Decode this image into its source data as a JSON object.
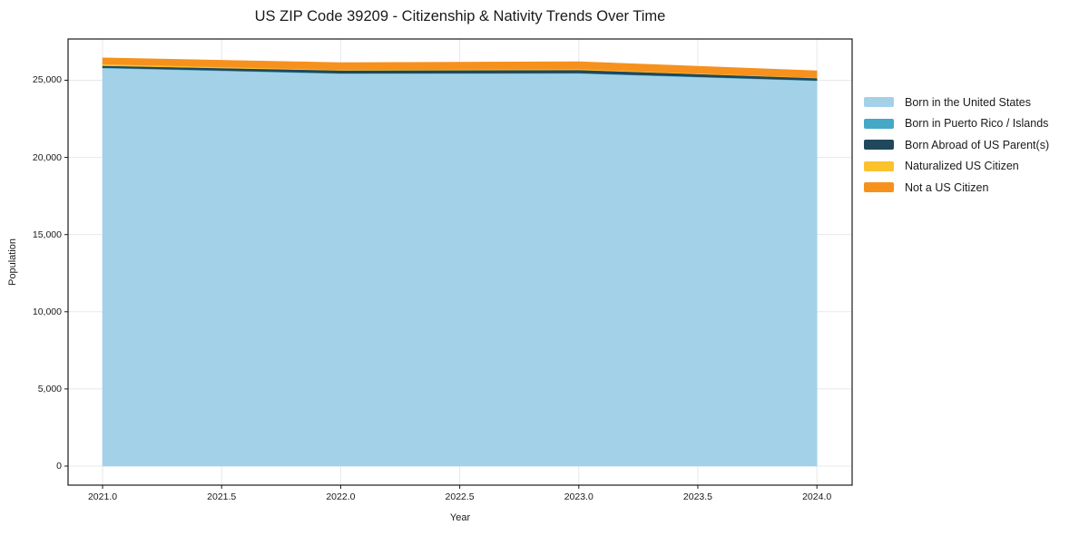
{
  "title": "US ZIP Code 39209 - Citizenship & Nativity Trends Over Time",
  "chart_data": {
    "type": "area",
    "stacked": true,
    "title": "US ZIP Code 39209 - Citizenship & Nativity Trends Over Time",
    "xlabel": "Year",
    "ylabel": "Population",
    "x": [
      2021,
      2022,
      2023,
      2024
    ],
    "series": [
      {
        "name": "Born in the United States",
        "color": "#A3D1E8",
        "values": [
          25790,
          25430,
          25440,
          24970
        ]
      },
      {
        "name": "Born in Puerto Rico / Islands",
        "color": "#44A8C6",
        "values": [
          30,
          30,
          30,
          20
        ]
      },
      {
        "name": "Born Abroad of US Parent(s)",
        "color": "#21475C",
        "values": [
          120,
          180,
          200,
          150
        ]
      },
      {
        "name": "Naturalized US Citizen",
        "color": "#FCC22D",
        "values": [
          110,
          40,
          60,
          30
        ]
      },
      {
        "name": "Not a US Citizen",
        "color": "#F6911E",
        "values": [
          400,
          460,
          470,
          440
        ]
      }
    ],
    "totals_by_year": [
      26450,
      26140,
      26200,
      25610
    ],
    "xlim": [
      2020.855,
      2024.148
    ],
    "ylim": [
      -1234,
      27672
    ],
    "x_ticks": [
      2021.0,
      2021.5,
      2022.0,
      2022.5,
      2023.0,
      2023.5,
      2024.0
    ],
    "x_tick_labels": [
      "2021.0",
      "2021.5",
      "2022.0",
      "2022.5",
      "2023.0",
      "2023.5",
      "2024.0"
    ],
    "y_ticks": [
      0,
      5000,
      10000,
      15000,
      20000,
      25000
    ],
    "y_tick_labels": [
      "0",
      "5,000",
      "10,000",
      "15,000",
      "20,000",
      "25,000"
    ],
    "grid": true,
    "legend_position": "right"
  },
  "colors": {
    "grid": "#E8E8E8",
    "frame": "#1a1a1a",
    "background": "#FFFFFF"
  }
}
